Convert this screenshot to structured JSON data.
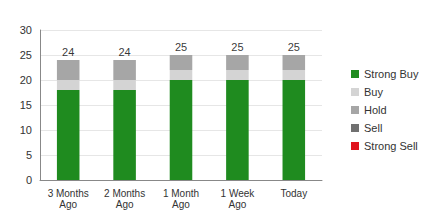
{
  "chart_data": {
    "type": "bar",
    "categories": [
      "3 Months\nAgo",
      "2 Months\nAgo",
      "1 Month\nAgo",
      "1 Week\nAgo",
      "Today"
    ],
    "series": [
      {
        "name": "Strong Buy",
        "color": "#1f8b1f",
        "values": [
          18,
          18,
          20,
          20,
          20
        ]
      },
      {
        "name": "Buy",
        "color": "#d4d4d4",
        "values": [
          2,
          2,
          2,
          2,
          2
        ]
      },
      {
        "name": "Hold",
        "color": "#a6a6a6",
        "values": [
          4,
          4,
          3,
          3,
          3
        ]
      },
      {
        "name": "Sell",
        "color": "#707070",
        "values": [
          0,
          0,
          0,
          0,
          0
        ]
      },
      {
        "name": "Strong Sell",
        "color": "#e0141e",
        "values": [
          0,
          0,
          0,
          0,
          0
        ]
      }
    ],
    "totals": [
      24,
      24,
      25,
      25,
      25
    ],
    "stacked": true,
    "ylim": [
      0,
      30
    ],
    "yticks": [
      0,
      5,
      10,
      15,
      20,
      25,
      30
    ],
    "grid": true,
    "legend": "right"
  }
}
